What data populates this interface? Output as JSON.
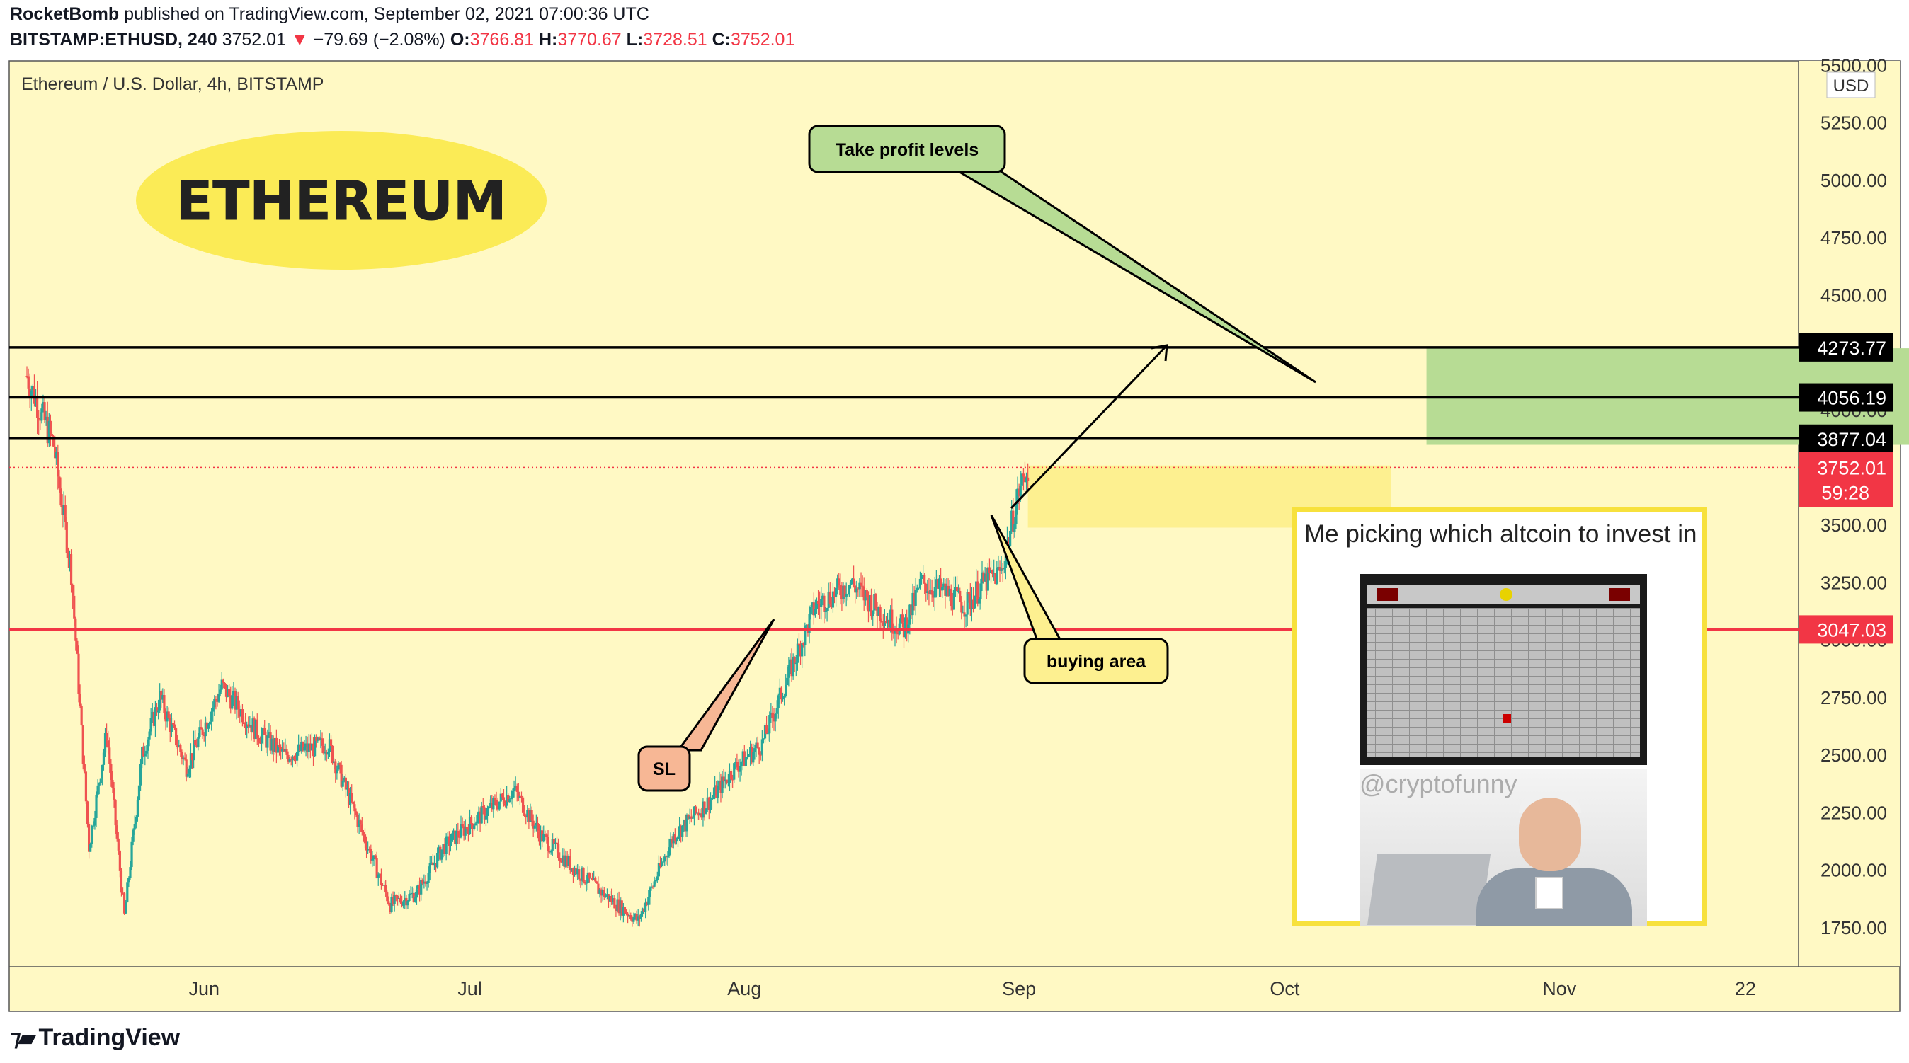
{
  "header": {
    "author": "RocketBomb",
    "published": "published on TradingView.com, September 02, 2021 07:00:36 UTC",
    "symbol": "BITSTAMP:ETHUSD, 240",
    "last": "3752.01",
    "change_arrow": "▼",
    "change": "−79.69 (−2.08%)",
    "o_label": "O:",
    "o": "3766.81",
    "h_label": "H:",
    "h": "3770.67",
    "l_label": "L:",
    "l": "3728.51",
    "c_label": "C:",
    "c": "3752.01"
  },
  "chart_legend": "Ethereum / U.S. Dollar, 4h, BITSTAMP",
  "currency_badge": "USD",
  "title_oval": "ETHEREUM",
  "notes": {
    "take_profit": "Take profit levels",
    "buying_area": "buying area",
    "sl": "SL"
  },
  "price_labels": {
    "tp3": "4273.77",
    "tp2": "4056.19",
    "tp1": "3877.04",
    "last": "3752.01",
    "countdown": "59:28",
    "sl": "3047.03"
  },
  "meme": {
    "caption": "Me picking which altcoin to invest in",
    "watermark": "@cryptofunny"
  },
  "footer_logo": "TradingView",
  "colors": {
    "background": "#fff9c4",
    "up": "#26a69a",
    "down": "#ef5350",
    "sl_line": "#f23645",
    "tp_zone": "#b7dc94",
    "buy_zone": "#fdf090",
    "oval": "#fbeb56"
  },
  "chart_data": {
    "type": "candlestick",
    "title": "Ethereum / U.S. Dollar, 4h, BITSTAMP",
    "currency": "USD",
    "x_ticks": [
      "Jun",
      "Jul",
      "Aug",
      "Sep",
      "Oct",
      "Nov",
      "22"
    ],
    "y_ticks": [
      1750,
      2000,
      2250,
      2500,
      2750,
      3000,
      3250,
      3500,
      3750,
      4000,
      4250,
      4500,
      4750,
      5000,
      5250,
      5500
    ],
    "y_tick_labels": [
      "1750.00",
      "2000.00",
      "2250.00",
      "2500.00",
      "2750.00",
      "3000.00",
      "3250.00",
      "3500.00",
      "3750.00",
      "4000.00",
      "4250.00",
      "4500.00",
      "4750.00",
      "5000.00",
      "5250.00",
      "5500.00"
    ],
    "ylim": [
      1580,
      5520
    ],
    "grid": false,
    "price_path": [
      [
        "2021-05-12",
        4150
      ],
      [
        "2021-05-15",
        3850
      ],
      [
        "2021-05-17",
        3300
      ],
      [
        "2021-05-19",
        2100
      ],
      [
        "2021-05-21",
        2600
      ],
      [
        "2021-05-23",
        1800
      ],
      [
        "2021-05-25",
        2500
      ],
      [
        "2021-05-27",
        2750
      ],
      [
        "2021-05-30",
        2450
      ],
      [
        "2021-06-03",
        2800
      ],
      [
        "2021-06-07",
        2600
      ],
      [
        "2021-06-10",
        2500
      ],
      [
        "2021-06-15",
        2550
      ],
      [
        "2021-06-18",
        2250
      ],
      [
        "2021-06-22",
        1850
      ],
      [
        "2021-06-25",
        1900
      ],
      [
        "2021-06-28",
        2100
      ],
      [
        "2021-07-01",
        2200
      ],
      [
        "2021-07-06",
        2350
      ],
      [
        "2021-07-09",
        2150
      ],
      [
        "2021-07-13",
        2000
      ],
      [
        "2021-07-16",
        1900
      ],
      [
        "2021-07-20",
        1780
      ],
      [
        "2021-07-24",
        2150
      ],
      [
        "2021-07-28",
        2300
      ],
      [
        "2021-07-31",
        2450
      ],
      [
        "2021-08-03",
        2550
      ],
      [
        "2021-08-06",
        2850
      ],
      [
        "2021-08-09",
        3150
      ],
      [
        "2021-08-13",
        3250
      ],
      [
        "2021-08-17",
        3100
      ],
      [
        "2021-08-19",
        3050
      ],
      [
        "2021-08-21",
        3250
      ],
      [
        "2021-08-24",
        3200
      ],
      [
        "2021-08-26",
        3150
      ],
      [
        "2021-08-28",
        3250
      ],
      [
        "2021-08-30",
        3300
      ],
      [
        "2021-09-01",
        3650
      ],
      [
        "2021-09-02",
        3752
      ]
    ],
    "last_price": 3752.01,
    "horizontal_levels": [
      {
        "price": 4273.77,
        "color": "#000000"
      },
      {
        "price": 4056.19,
        "color": "#000000"
      },
      {
        "price": 3877.04,
        "color": "#000000"
      },
      {
        "price": 3047.03,
        "color": "#f23645"
      }
    ],
    "zones": [
      {
        "name": "Take profit zone",
        "from_date": "2021-10-17",
        "to_date": "2021-12-25",
        "low": 3850,
        "high": 4270
      },
      {
        "name": "buying area",
        "from_date": "2021-09-02",
        "to_date": "2021-10-13",
        "low": 3490,
        "high": 3760
      }
    ]
  }
}
